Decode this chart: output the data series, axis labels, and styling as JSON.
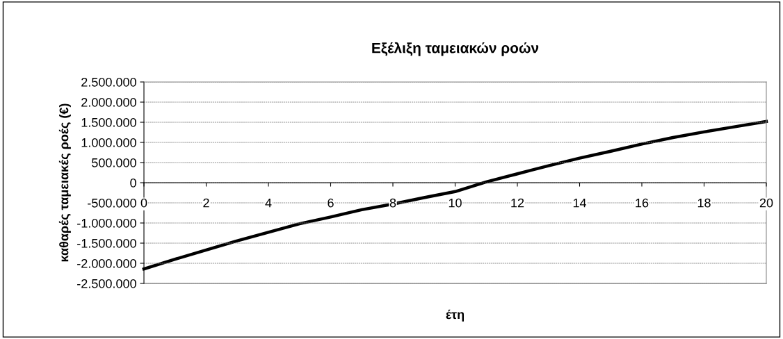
{
  "chart_data": {
    "type": "line",
    "title": "Εξέλιξη ταμειακών ροών",
    "xlabel": "έτη",
    "ylabel": "καθαρές ταμειακές ροές (€)",
    "x": [
      0,
      1,
      2,
      3,
      4,
      5,
      6,
      7,
      8,
      9,
      10,
      11,
      12,
      13,
      14,
      15,
      16,
      17,
      18,
      19,
      20
    ],
    "series": [
      {
        "color": "#000000",
        "values": [
          -2140000,
          -1900000,
          -1670000,
          -1440000,
          -1230000,
          -1020000,
          -850000,
          -670000,
          -530000,
          -370000,
          -220000,
          20000,
          220000,
          420000,
          610000,
          780000,
          960000,
          1120000,
          1260000,
          1390000,
          1520000
        ]
      }
    ],
    "xlim": [
      0,
      20
    ],
    "xticks": [
      0,
      2,
      4,
      6,
      8,
      10,
      12,
      14,
      16,
      18,
      20
    ],
    "ylim": [
      -2500000,
      2500000
    ],
    "yticks": [
      {
        "value": 2500000,
        "label": "2.500.000"
      },
      {
        "value": 2000000,
        "label": "2.000.000"
      },
      {
        "value": 1500000,
        "label": "1.500.000"
      },
      {
        "value": 1000000,
        "label": "1.000.000"
      },
      {
        "value": 500000,
        "label": "500.000"
      },
      0,
      {
        "value": -500000,
        "label": "-500.000"
      },
      {
        "value": -1000000,
        "label": "-1.000.000"
      },
      {
        "value": -1500000,
        "label": "-1.500.000"
      },
      {
        "value": -2000000,
        "label": "-2.000.000"
      },
      {
        "value": -2500000,
        "label": "-2.500.000"
      }
    ],
    "grid": "y",
    "marker": "none",
    "line_style": "solid"
  }
}
